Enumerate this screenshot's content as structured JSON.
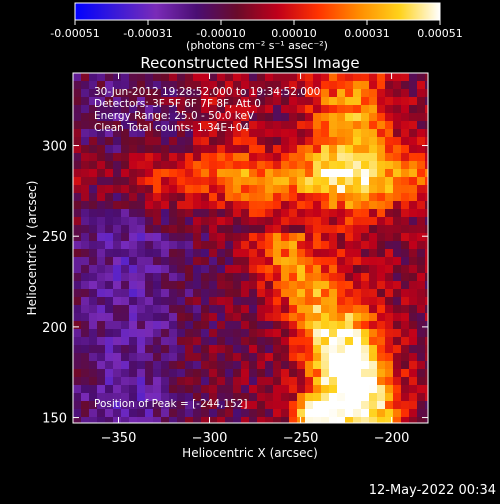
{
  "colorbar": {
    "ticks": [
      "-0.00051",
      "-0.00031",
      "-0.00010",
      "0.00010",
      "0.00031",
      "0.00051"
    ],
    "unit_label": "(photons cm⁻² s⁻¹ asec⁻²)",
    "stops": [
      "#0000ff",
      "#3a1ad8",
      "#7a2bb8",
      "#4a0e73",
      "#6a0a2a",
      "#c0001a",
      "#ff3300",
      "#ff8c00",
      "#ffd21a",
      "#ffffff"
    ]
  },
  "chart_data": {
    "type": "heatmap",
    "title": "Reconstructed RHESSI Image",
    "xlabel": "Heliocentric X (arcsec)",
    "ylabel": "Heliocentric Y (arcsec)",
    "xlim": [
      -375,
      -180
    ],
    "ylim": [
      147,
      340
    ],
    "x_ticks": [
      -350,
      -300,
      -250,
      -200
    ],
    "y_ticks": [
      150,
      200,
      250,
      300
    ],
    "value_range": [
      -0.00051,
      0.00051
    ],
    "peak_x": -244,
    "peak_y": 152,
    "annotations": [
      "30-Jun-2012 19:28:52.000 to 19:34:52.000",
      "Detectors: 3F 5F 6F 7F 8F, Att 0",
      "Energy Range: 25.0 - 50.0 keV",
      "Clean    Total counts: 1.34E+04"
    ],
    "peak_label": "Position of Peak = [-244,152]"
  },
  "footer": {
    "timestamp": "12-May-2022 00:34"
  }
}
